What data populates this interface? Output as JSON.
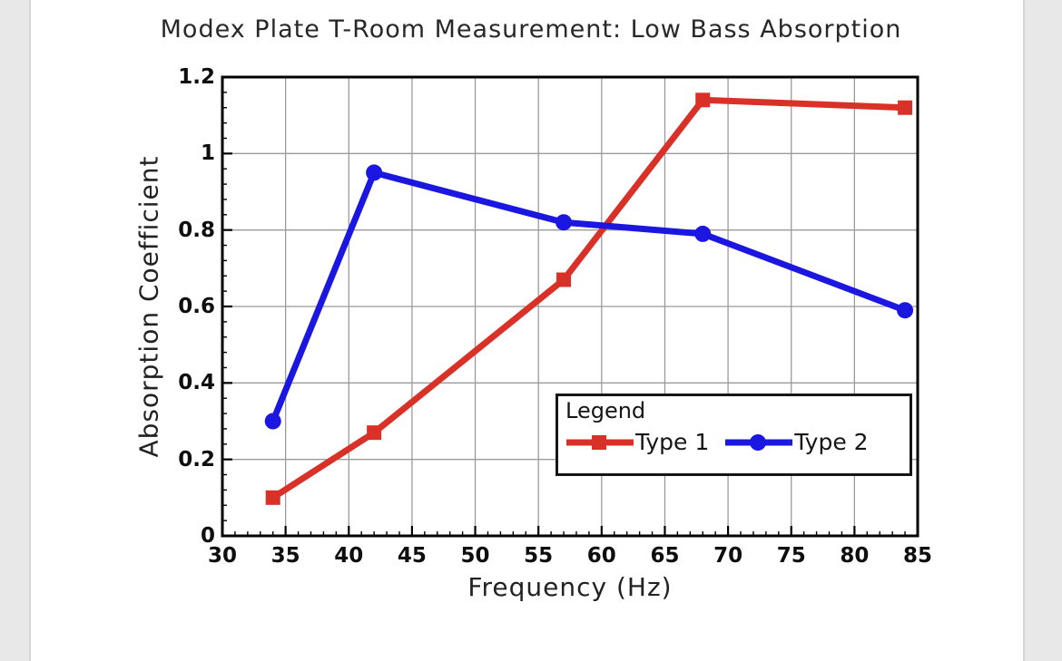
{
  "page": {
    "background_color": "#e8e8e8",
    "card_background": "#ffffff",
    "card_border_color": "#d5d5d5"
  },
  "chart_data": {
    "type": "line",
    "title": "Modex Plate T-Room Measurement: Low Bass Absorption",
    "xlabel": "Frequency (Hz)",
    "ylabel": "Absorption Coefficient",
    "xlim": [
      30,
      85
    ],
    "ylim": [
      0,
      1.2
    ],
    "xticks": [
      30,
      35,
      40,
      45,
      50,
      55,
      60,
      65,
      70,
      75,
      80,
      85
    ],
    "yticks": [
      0,
      0.2,
      0.4,
      0.6,
      0.8,
      1,
      1.2
    ],
    "ytick_labels": [
      "0",
      "0.2",
      "0.4",
      "0.6",
      "0.8",
      "1",
      "1.2"
    ],
    "x_minor_step": 1,
    "y_minor_step": 0.04,
    "grid": true,
    "grid_color": "#9b9b9b",
    "frame_color": "#000000",
    "x": [
      34,
      42,
      57,
      68,
      84
    ],
    "series": [
      {
        "name": "Type 1",
        "color": "#d93128",
        "marker": "square",
        "values": [
          0.1,
          0.27,
          0.67,
          1.14,
          1.12
        ]
      },
      {
        "name": "Type 2",
        "color": "#1b16e0",
        "marker": "circle",
        "values": [
          0.3,
          0.95,
          0.82,
          0.79,
          0.59
        ]
      }
    ],
    "legend": {
      "title": "Legend",
      "position": "inside-bottom-right"
    }
  }
}
